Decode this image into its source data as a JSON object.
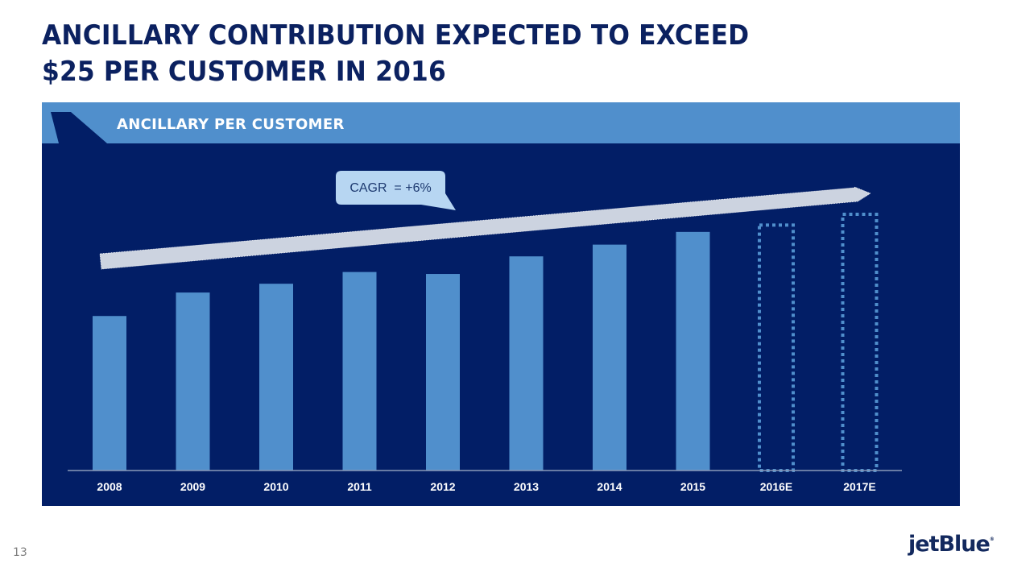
{
  "slide": {
    "title_lines": [
      "ANCILLARY CONTRIBUTION EXPECTED TO EXCEED",
      "$25 PER CUSTOMER IN 2016"
    ],
    "page_number": "13",
    "logo_text": "jetBlue",
    "logo_mark": "®"
  },
  "panel": {
    "header_label": "ANCILLARY PER CUSTOMER",
    "header_icon": "aircraft-tail-icon"
  },
  "colors": {
    "navy": "#021e66",
    "accent_blue": "#508fcc",
    "arrow_gray": "#ccd3e0",
    "callout_fill": "#b7d6f2",
    "callout_text": "#1e3a70",
    "baseline": "#8a9ab8",
    "title": "#0b2160"
  },
  "chart_data": {
    "type": "bar",
    "title": "ANCILLARY PER CUSTOMER",
    "xlabel": "",
    "ylabel": "",
    "units": "USD per customer (estimated; no axis shown)",
    "categories": [
      "2008",
      "2009",
      "2010",
      "2011",
      "2012",
      "2013",
      "2014",
      "2015",
      "2016E",
      "2017E"
    ],
    "values": [
      15.8,
      18.2,
      19.1,
      20.3,
      20.1,
      21.9,
      23.1,
      24.4,
      25.1,
      26.2
    ],
    "estimated": [
      false,
      false,
      false,
      false,
      false,
      false,
      false,
      false,
      true,
      true
    ],
    "ylim": [
      0,
      26.2
    ],
    "grid": false,
    "legend": "none",
    "annotations": [
      {
        "type": "trend-arrow",
        "from_category": "2008",
        "to_category": "2017E",
        "label": "CAGR  = +6%"
      }
    ]
  }
}
